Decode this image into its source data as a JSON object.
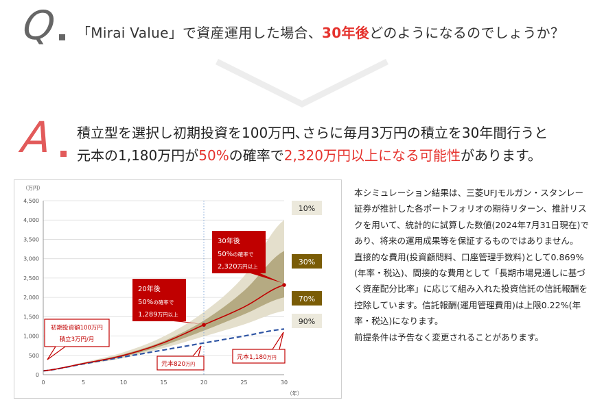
{
  "question": {
    "letter": "Q",
    "text_before": "「Mirai Value」で資産運用した場合、",
    "text_highlight": "30年後",
    "text_after": "どのようになるのでしょうか？"
  },
  "answer": {
    "letter": "A",
    "line1": "積立型を選択し初期投資を100万円､さらに毎月3万円の積立を30年間行うと",
    "line2_before": "元本の1,180万円が",
    "line2_highlight1": "50%",
    "line2_middle": "の確率で",
    "line2_highlight2": "2,320万円以上になる可能性",
    "line2_after": "があります。"
  },
  "colors": {
    "accent_red": "#e5322d",
    "band_outer": "#e4dfcc",
    "band_inner": "#b5aa82",
    "median_line": "#c00000",
    "principal_line": "#2f55a4",
    "callout_red": "#c00000",
    "label_10_bg": "#ece9dc",
    "label_30_bg": "#7a5c06",
    "label_70_bg": "#7a5c06",
    "label_90_bg": "#ece9dc"
  },
  "chart_data": {
    "type": "area",
    "y_unit_label": "（万円）",
    "x_unit_label": "（年）",
    "xlim": [
      0,
      30
    ],
    "ylim": [
      0,
      4500
    ],
    "x_ticks": [
      0,
      5,
      10,
      15,
      20,
      25,
      30
    ],
    "y_ticks": [
      0,
      500,
      1000,
      1500,
      2000,
      2500,
      3000,
      3500,
      4000,
      4500
    ],
    "y_tick_labels": [
      "0",
      "500",
      "1,000",
      "1,500",
      "2,000",
      "2,500",
      "3,000",
      "3,500",
      "4,000",
      "4,500"
    ],
    "grid": "horizontal",
    "x": [
      0,
      5,
      10,
      15,
      20,
      25,
      30
    ],
    "series": [
      {
        "name": "10%",
        "values": [
          100,
          320,
          580,
          990,
          1620,
          2550,
          4000
        ]
      },
      {
        "name": "30%",
        "values": [
          100,
          300,
          530,
          870,
          1400,
          2170,
          3200
        ]
      },
      {
        "name": "50%",
        "values": [
          100,
          290,
          500,
          830,
          1289,
          1750,
          2320
        ]
      },
      {
        "name": "70%",
        "values": [
          100,
          275,
          470,
          760,
          1140,
          1560,
          2000
        ]
      },
      {
        "name": "90%",
        "values": [
          100,
          260,
          430,
          690,
          990,
          1300,
          1650
        ]
      },
      {
        "name": "元本",
        "values": [
          100,
          280,
          460,
          640,
          820,
          1000,
          1180
        ]
      }
    ],
    "band_labels": [
      "10%",
      "30%",
      "70%",
      "90%"
    ],
    "callouts": {
      "initial_line1": "初期投資額100万円",
      "initial_line2": "積立3万円/月",
      "y20_line1": "20年後",
      "y20_line2_num": "50%",
      "y20_line2_text": "の確率で",
      "y20_line3_num": "1,289",
      "y20_line3_text": "万円以上",
      "y30_line1": "30年後",
      "y30_line2_num": "50%",
      "y30_line2_text": "の確率で",
      "y30_line3_num": "2,320",
      "y30_line3_text": "万円以上",
      "principal20_num": "元本820",
      "principal20_unit": "万円",
      "principal30_num": "元本1,180",
      "principal30_unit": "万円"
    }
  },
  "note": {
    "p1": "本シミュレーション結果は、三菱UFJモルガン・スタンレー証券が推計した各ポートフォリオの期待リターン、推計リスクを用いて、統計的に試算した数値(2024年7月31日現在)であり、将来の運用成果等を保証するものではありません。",
    "p2": "直接的な費用(投資顧問料、口座管理手数料)として0.869%(年率・税込)、間接的な費用として「長期市場見通しに基づく資産配分比率」に応じて組み入れた投資信託の信託報酬を控除しています。信託報酬(運用管理費用)は上限0.22%(年率・税込)になります。",
    "p3": "前提条件は予告なく変更されることがあります。"
  }
}
